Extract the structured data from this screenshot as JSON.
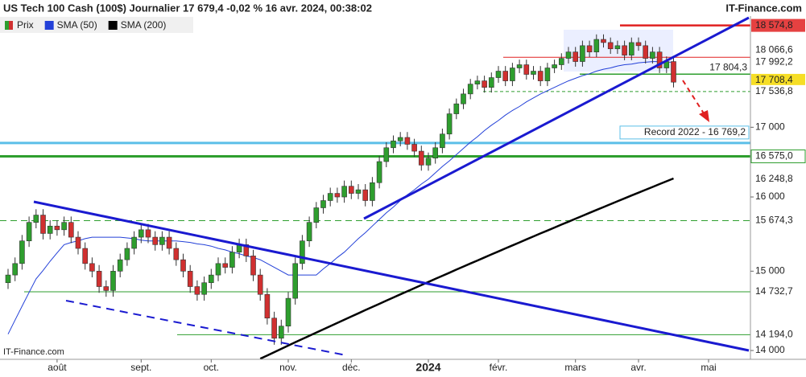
{
  "chart_data": {
    "type": "candlestick",
    "title": "US Tech 100 Cash (100$) Journalier 17 679,4 -0,02 % 16 avr. 2024, 00:38:02",
    "source": "IT-Finance.com",
    "watermark": "IT-Finance.com",
    "log_scale": true,
    "ylim": [
      13893,
      18726
    ],
    "yticks": [
      {
        "value": 14000,
        "label": "14 000"
      },
      {
        "value": 15000,
        "label": "15 000"
      },
      {
        "value": 16000,
        "label": "16 000"
      },
      {
        "value": 17000,
        "label": "17 000"
      }
    ],
    "categories": [
      null,
      null,
      null,
      null,
      null,
      null,
      null,
      "août",
      null,
      null,
      null,
      null,
      null,
      null,
      null,
      null,
      null,
      null,
      null,
      "sept.",
      null,
      null,
      null,
      null,
      null,
      null,
      null,
      null,
      null,
      "oct.",
      null,
      null,
      null,
      null,
      null,
      null,
      null,
      null,
      null,
      null,
      "nov.",
      null,
      null,
      null,
      null,
      null,
      null,
      null,
      null,
      "déc.",
      null,
      null,
      null,
      null,
      null,
      null,
      null,
      null,
      null,
      null,
      "2024",
      null,
      null,
      null,
      null,
      null,
      null,
      null,
      null,
      null,
      "févr.",
      null,
      null,
      null,
      null,
      null,
      null,
      null,
      null,
      null,
      null,
      "mars",
      null,
      null,
      null,
      null,
      null,
      null,
      null,
      null,
      "avr.",
      null,
      null,
      null,
      null,
      null,
      null,
      null,
      null,
      null,
      "mai",
      null,
      null,
      null,
      null,
      null,
      null
    ],
    "series": [
      {
        "name": "Prix",
        "type": "candlestick",
        "color": "#2e9e2e",
        "down_color": "#d03030",
        "open": [
          14850,
          14950,
          15100,
          15400,
          15650,
          15750,
          15500,
          15600,
          15550,
          15650,
          15450,
          15300,
          15100,
          15000,
          14800,
          14750,
          15000,
          15150,
          15300,
          15450,
          15550,
          15450,
          15350,
          15450,
          15300,
          15150,
          15000,
          14800,
          14700,
          14850,
          14950,
          15100,
          15050,
          15250,
          15350,
          15200,
          14950,
          14700,
          14400,
          14150,
          14300,
          14650,
          15100,
          15400,
          15650,
          15850,
          15950,
          16050,
          16000,
          16150,
          16050,
          16100,
          15950,
          16200,
          16500,
          16700,
          16800,
          16850,
          16750,
          16650,
          16450,
          16550,
          16700,
          16900,
          17200,
          17350,
          17500,
          17650,
          17700,
          17600,
          17750,
          17850,
          17700,
          17900,
          17950,
          17800,
          17850,
          17700,
          17900,
          17950,
          18050,
          18150,
          18000,
          18250,
          18150,
          18350,
          18300,
          18200,
          18250,
          18100,
          18300,
          18250,
          18050,
          18150,
          17900,
          18000,
          null,
          null,
          null,
          null,
          null,
          null,
          null,
          null,
          null,
          null,
          null
        ],
        "high": [
          15030,
          15180,
          15480,
          15730,
          15830,
          15830,
          15680,
          15680,
          15730,
          15730,
          15530,
          15380,
          15180,
          15080,
          14880,
          15080,
          15230,
          15380,
          15530,
          15630,
          15630,
          15530,
          15530,
          15530,
          15380,
          15230,
          15080,
          14880,
          14930,
          15030,
          15180,
          15180,
          15330,
          15430,
          15430,
          15280,
          15030,
          14780,
          14480,
          14380,
          14730,
          15180,
          15480,
          15730,
          15930,
          16030,
          16130,
          16130,
          16230,
          16230,
          16180,
          16180,
          16280,
          16580,
          16780,
          16880,
          16930,
          16930,
          16830,
          16730,
          16630,
          16780,
          16980,
          17280,
          17430,
          17580,
          17730,
          17780,
          17780,
          17830,
          17930,
          17930,
          17980,
          18030,
          18030,
          17930,
          17930,
          17980,
          18030,
          18130,
          18230,
          18230,
          18330,
          18330,
          18430,
          18430,
          18380,
          18330,
          18330,
          18380,
          18380,
          18330,
          18230,
          18230,
          18080,
          18080,
          null,
          null,
          null,
          null,
          null,
          null,
          null,
          null,
          null,
          null,
          null
        ],
        "low": [
          14770,
          14870,
          15020,
          15320,
          15570,
          15420,
          15420,
          15470,
          15470,
          15370,
          15220,
          15020,
          14920,
          14720,
          14670,
          14670,
          14920,
          15070,
          15220,
          15370,
          15370,
          15270,
          15270,
          15220,
          15070,
          14920,
          14720,
          14620,
          14620,
          14770,
          14870,
          14970,
          14970,
          15170,
          15120,
          14870,
          14620,
          14320,
          14070,
          14070,
          14220,
          14570,
          15020,
          15320,
          15570,
          15770,
          15870,
          15920,
          15920,
          15970,
          15970,
          15870,
          15870,
          16120,
          16420,
          16620,
          16720,
          16670,
          16570,
          16370,
          16370,
          16470,
          16620,
          16820,
          17120,
          17270,
          17420,
          17570,
          17520,
          17520,
          17670,
          17620,
          17620,
          17820,
          17720,
          17720,
          17620,
          17620,
          17820,
          17870,
          17970,
          17920,
          17920,
          18070,
          18070,
          18220,
          18120,
          18120,
          18020,
          18020,
          18170,
          17970,
          17970,
          17820,
          17820,
          17600,
          null,
          null,
          null,
          null,
          null,
          null,
          null,
          null,
          null,
          null,
          null
        ],
        "close": [
          14950,
          15100,
          15400,
          15650,
          15750,
          15500,
          15600,
          15550,
          15650,
          15450,
          15300,
          15100,
          15000,
          14800,
          14750,
          15000,
          15150,
          15300,
          15450,
          15550,
          15450,
          15350,
          15450,
          15300,
          15150,
          15000,
          14800,
          14700,
          14850,
          14950,
          15100,
          15050,
          15250,
          15350,
          15200,
          14950,
          14700,
          14400,
          14150,
          14300,
          14650,
          15100,
          15400,
          15650,
          15850,
          15950,
          16050,
          16000,
          16150,
          16050,
          16100,
          15950,
          16200,
          16500,
          16700,
          16800,
          16850,
          16750,
          16650,
          16450,
          16550,
          16700,
          16900,
          17200,
          17350,
          17500,
          17650,
          17700,
          17600,
          17750,
          17850,
          17700,
          17900,
          17950,
          17800,
          17850,
          17700,
          17900,
          17950,
          18050,
          18150,
          18000,
          18250,
          18150,
          18350,
          18300,
          18200,
          18250,
          18100,
          18300,
          18250,
          18050,
          18150,
          17900,
          18000,
          17680,
          null,
          null,
          null,
          null,
          null,
          null,
          null,
          null,
          null,
          null,
          null
        ]
      },
      {
        "name": "SMA (50)",
        "type": "line",
        "color": "#2340d8",
        "values": [
          14200,
          14375,
          14550,
          14725,
          14900,
          15010,
          15130,
          15240,
          15350,
          15380,
          15400,
          15430,
          15450,
          15450,
          15450,
          15450,
          15450,
          15440,
          15430,
          15410,
          15400,
          15400,
          15400,
          15400,
          15400,
          15390,
          15380,
          15360,
          15350,
          15330,
          15300,
          15280,
          15250,
          15230,
          15200,
          15180,
          15150,
          15100,
          15050,
          15000,
          14950,
          14950,
          14950,
          14950,
          14950,
          15030,
          15100,
          15180,
          15250,
          15340,
          15430,
          15510,
          15600,
          15690,
          15780,
          15860,
          15950,
          16030,
          16100,
          16180,
          16250,
          16340,
          16430,
          16510,
          16600,
          16690,
          16780,
          16860,
          16950,
          17030,
          17100,
          17180,
          17250,
          17310,
          17380,
          17440,
          17500,
          17550,
          17600,
          17650,
          17700,
          17740,
          17780,
          17810,
          17850,
          17880,
          17900,
          17930,
          17950,
          17960,
          17980,
          17990,
          18000,
          18000,
          17990,
          17990,
          null,
          null,
          null,
          null,
          null,
          null,
          null,
          null,
          null,
          null,
          null
        ]
      },
      {
        "name": "SMA (200)",
        "type": "line",
        "color": "#000000",
        "values": [
          null,
          null,
          null,
          null,
          null,
          null,
          null,
          null,
          null,
          null,
          null,
          null,
          null,
          null,
          null,
          null,
          null,
          null,
          null,
          null,
          null,
          null,
          null,
          null,
          null,
          null,
          null,
          null,
          null,
          null,
          null,
          null,
          null,
          null,
          null,
          null,
          13900,
          13940,
          13980,
          14020,
          14060,
          14100,
          14140,
          14180,
          14220,
          14260,
          14300,
          14340,
          14380,
          14420,
          14460,
          14500,
          14540,
          14580,
          14620,
          14660,
          14700,
          14740,
          14780,
          14820,
          14860,
          14900,
          14940,
          14980,
          15020,
          15060,
          15100,
          15140,
          15180,
          15220,
          15260,
          15300,
          15340,
          15380,
          15420,
          15460,
          15500,
          15540,
          15580,
          15620,
          15660,
          15700,
          15740,
          15780,
          15820,
          15860,
          15900,
          15940,
          15980,
          16020,
          16060,
          16100,
          16140,
          16180,
          16220,
          16260,
          null,
          null,
          null,
          null,
          null,
          null,
          null,
          null,
          null,
          null,
          null
        ]
      }
    ],
    "levels": [
      {
        "value": 18574.8,
        "label": "18 574,8",
        "color": "#e02020"
      },
      {
        "value": 18066.6,
        "label": "18 066,6",
        "color": "#e02020"
      },
      {
        "value": 17992.2,
        "label": "17 992,2",
        "color": "#2340d8"
      },
      {
        "value": 17804.3,
        "label": "17 804,3",
        "color": "#2e9e2e"
      },
      {
        "value": 17708.4,
        "label": "17 708,4",
        "color": "#f5d800"
      },
      {
        "value": 17536.8,
        "label": "17 536,8",
        "color": "#2e9e2e"
      },
      {
        "value": 16769.2,
        "label": "Record 2022 - 16 769,2",
        "color": "#5bbfe8"
      },
      {
        "value": 16575.0,
        "label": "16 575,0",
        "color": "#2e9e2e"
      },
      {
        "value": 16248.8,
        "label": "16 248,8",
        "color": "#000000"
      },
      {
        "value": 15674.3,
        "label": "15 674,3",
        "color": "#2e9e2e"
      },
      {
        "value": 14732.7,
        "label": "14 732,7",
        "color": "#2e9e2e"
      },
      {
        "value": 14194.0,
        "label": "14 194,0",
        "color": "#2e9e2e"
      }
    ]
  }
}
